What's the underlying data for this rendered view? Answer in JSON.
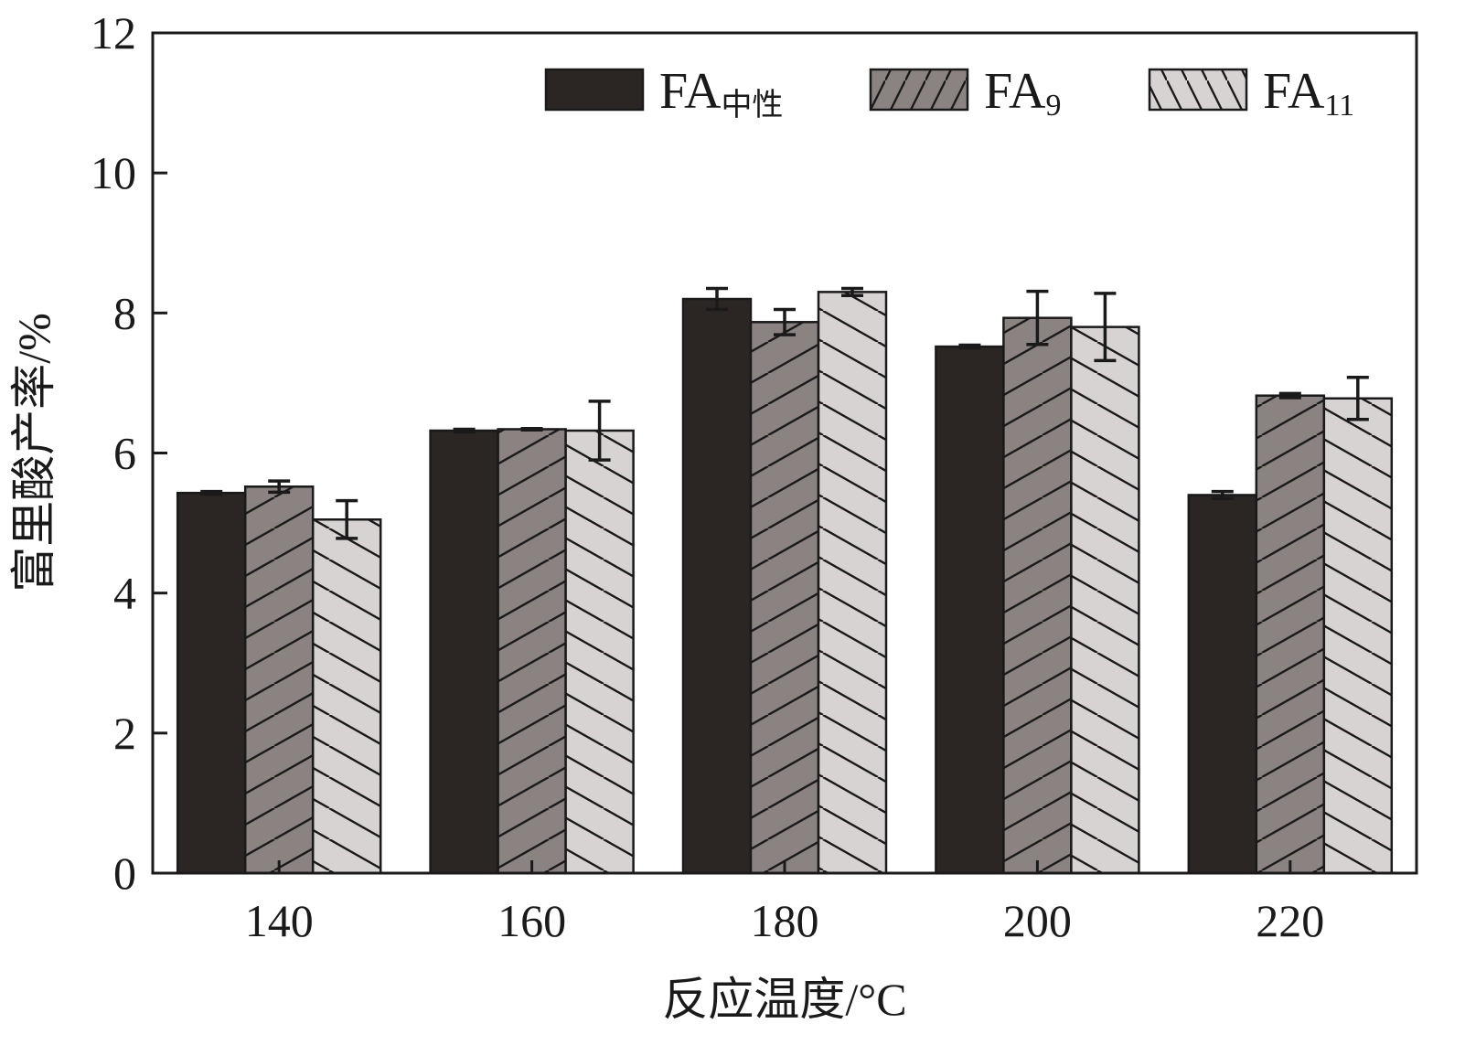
{
  "chart_data": {
    "type": "bar",
    "title": "",
    "xlabel": "反应温度/°C",
    "ylabel": "富里酸产率/%",
    "categories": [
      "140",
      "160",
      "180",
      "200",
      "220"
    ],
    "ylim": [
      0,
      12
    ],
    "yticks": [
      "0",
      "2",
      "4",
      "6",
      "8",
      "10",
      "12"
    ],
    "grid": false,
    "legend_position": "top-right",
    "series": [
      {
        "name": "FA中性",
        "label_main": "FA",
        "label_sub": "中性",
        "color": "#2b2624",
        "pattern": "solid",
        "values": [
          5.43,
          6.32,
          8.2,
          7.52,
          5.4
        ],
        "errors": [
          0.02,
          0.02,
          0.15,
          0.02,
          0.05
        ]
      },
      {
        "name": "FA9",
        "label_main": "FA",
        "label_sub": "9",
        "color": "#8a8382",
        "pattern": "hatch-forward",
        "values": [
          5.52,
          6.34,
          7.87,
          7.93,
          6.82
        ],
        "errors": [
          0.08,
          0.01,
          0.18,
          0.38,
          0.03
        ]
      },
      {
        "name": "FA11",
        "label_main": "FA",
        "label_sub": "11",
        "color": "#d8d3d3",
        "pattern": "hatch-backward",
        "values": [
          5.05,
          6.32,
          8.3,
          7.8,
          6.78
        ],
        "errors": [
          0.27,
          0.42,
          0.05,
          0.48,
          0.3
        ]
      }
    ]
  }
}
